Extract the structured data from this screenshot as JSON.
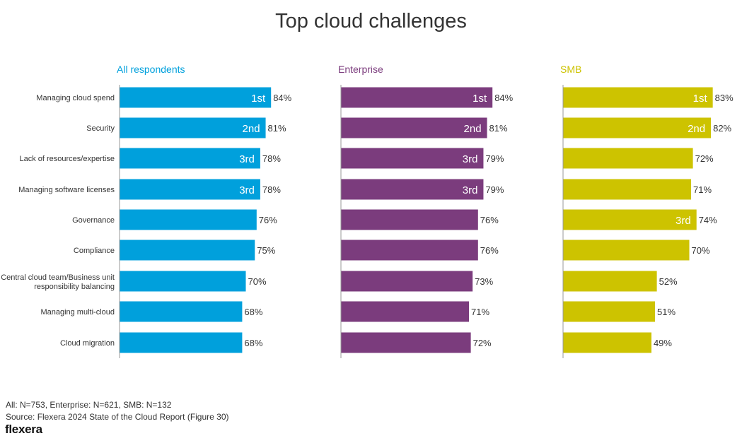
{
  "chart_data": {
    "type": "bar",
    "orientation": "horizontal",
    "title": "Top cloud challenges",
    "categories": [
      "Managing cloud spend",
      "Security",
      "Lack of resources/expertise",
      "Managing software licenses",
      "Governance",
      "Compliance",
      "Central cloud team/Business unit responsibility balancing",
      "Managing multi-cloud",
      "Cloud migration"
    ],
    "xlim": [
      0,
      100
    ],
    "grid": false,
    "series": [
      {
        "name": "All respondents",
        "color": "#00a0dc",
        "values": [
          84,
          81,
          78,
          78,
          76,
          75,
          70,
          68,
          68
        ],
        "ranks": [
          "1st",
          "2nd",
          "3rd",
          "3rd",
          "",
          "",
          "",
          "",
          ""
        ]
      },
      {
        "name": "Enterprise",
        "color": "#7b3c7d",
        "values": [
          84,
          81,
          79,
          79,
          76,
          76,
          73,
          71,
          72
        ],
        "ranks": [
          "1st",
          "2nd",
          "3rd",
          "3rd",
          "",
          "",
          "",
          "",
          ""
        ]
      },
      {
        "name": "SMB",
        "color": "#cdc300",
        "values": [
          83,
          82,
          72,
          71,
          74,
          70,
          52,
          51,
          49
        ],
        "ranks": [
          "1st",
          "2nd",
          "",
          "",
          "3rd",
          "",
          "",
          "",
          ""
        ]
      }
    ]
  },
  "footer": {
    "sample_note": "All: N=753, Enterprise: N=621, SMB: N=132",
    "source": "Source: Flexera 2024 State of the Cloud Report (Figure 30)",
    "logo": "flexera"
  }
}
